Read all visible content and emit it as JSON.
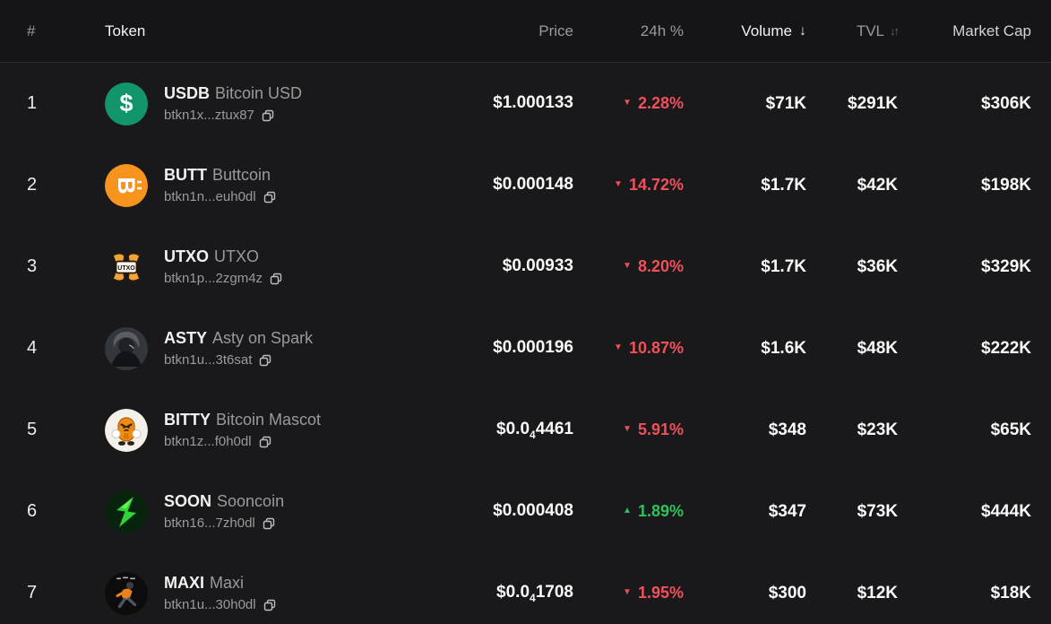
{
  "table": {
    "header": {
      "rank": "#",
      "token": "Token",
      "price": "Price",
      "change": "24h %",
      "volume": "Volume",
      "volume_sort_icon": "↓",
      "tvl": "TVL",
      "tvl_sort_icon": "↓↑",
      "market_cap": "Market Cap"
    },
    "rows": [
      {
        "rank": "1",
        "icon": "usdb-logo",
        "symbol": "USDB",
        "name": "Bitcoin USD",
        "address": "btkn1x...ztux87",
        "price_prefix": "$1.000133",
        "price_sub": "",
        "price_main": "",
        "change": "2.28%",
        "direction": "down",
        "volume": "$71K",
        "tvl": "$291K",
        "market_cap": "$306K"
      },
      {
        "rank": "2",
        "icon": "butt-logo",
        "symbol": "BUTT",
        "name": "Buttcoin",
        "address": "btkn1n...euh0dl",
        "price_prefix": "$0.000148",
        "price_sub": "",
        "price_main": "",
        "change": "14.72%",
        "direction": "down",
        "volume": "$1.7K",
        "tvl": "$42K",
        "market_cap": "$198K"
      },
      {
        "rank": "3",
        "icon": "utxo-logo",
        "symbol": "UTXO",
        "name": "UTXO",
        "address": "btkn1p...2zgm4z",
        "price_prefix": "$0.00933",
        "price_sub": "",
        "price_main": "",
        "change": "8.20%",
        "direction": "down",
        "volume": "$1.7K",
        "tvl": "$36K",
        "market_cap": "$329K"
      },
      {
        "rank": "4",
        "icon": "asty-logo",
        "symbol": "ASTY",
        "name": "Asty on Spark",
        "address": "btkn1u...3t6sat",
        "price_prefix": "$0.000196",
        "price_sub": "",
        "price_main": "",
        "change": "10.87%",
        "direction": "down",
        "volume": "$1.6K",
        "tvl": "$48K",
        "market_cap": "$222K"
      },
      {
        "rank": "5",
        "icon": "bitty-logo",
        "symbol": "BITTY",
        "name": "Bitcoin Mascot",
        "address": "btkn1z...f0h0dl",
        "price_prefix": "$0.0",
        "price_sub": "4",
        "price_main": "4461",
        "change": "5.91%",
        "direction": "down",
        "volume": "$348",
        "tvl": "$23K",
        "market_cap": "$65K"
      },
      {
        "rank": "6",
        "icon": "soon-logo",
        "symbol": "SOON",
        "name": "Sooncoin",
        "address": "btkn16...7zh0dl",
        "price_prefix": "$0.000408",
        "price_sub": "",
        "price_main": "",
        "change": "1.89%",
        "direction": "up",
        "volume": "$347",
        "tvl": "$73K",
        "market_cap": "$444K"
      },
      {
        "rank": "7",
        "icon": "maxi-logo",
        "symbol": "MAXI",
        "name": "Maxi",
        "address": "btkn1u...30h0dl",
        "price_prefix": "$0.0",
        "price_sub": "4",
        "price_main": "1708",
        "change": "1.95%",
        "direction": "down",
        "volume": "$300",
        "tvl": "$12K",
        "market_cap": "$18K"
      }
    ]
  },
  "glyphs": {
    "down_triangle": "▼",
    "up_triangle": "▲"
  },
  "colors": {
    "negative": "#f0505a",
    "positive": "#2fc25b",
    "usdb_green": "#12956a",
    "butt_orange": "#f7941d",
    "soon_green": "#2ed43a",
    "header_active": "#f2f2f2",
    "header_inactive": "#9a9a9a"
  }
}
